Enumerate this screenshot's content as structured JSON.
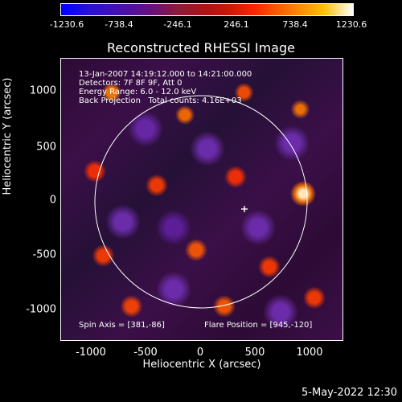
{
  "colorbar": {
    "labels": [
      "-1230.6",
      "-738.4",
      "-246.1",
      "246.1",
      "738.4",
      "1230.6"
    ]
  },
  "plot": {
    "title": "Reconstructed RHESSI Image",
    "info_lines": [
      "13-Jan-2007 14:19:12.000 to 14:21:00.000",
      "Detectors: 7F 8F 9F, Att 0",
      "Energy Range: 6.0 - 12.0 keV",
      "Back Projection   Total counts: 4.16E+03"
    ],
    "spin_axis": "Spin Axis = [381,-86]",
    "flare_position": "Flare Position = [945,-120]",
    "xlabel": "Heliocentric X (arcsec)",
    "ylabel": "Heliocentric Y (arcsec)",
    "xticks": [
      "-1000",
      "-500",
      "0",
      "500",
      "1000"
    ],
    "yticks": [
      "1000",
      "500",
      "0",
      "-500",
      "-1000"
    ]
  },
  "footer": {
    "date": "5-May-2022 12:30"
  }
}
